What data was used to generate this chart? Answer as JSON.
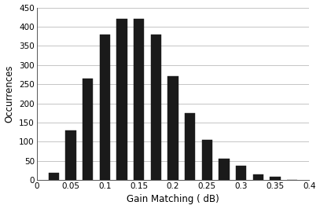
{
  "bar_centers": [
    0.025,
    0.05,
    0.075,
    0.1,
    0.125,
    0.15,
    0.175,
    0.2,
    0.225,
    0.25,
    0.275,
    0.3,
    0.325,
    0.35,
    0.375
  ],
  "bar_heights": [
    18,
    130,
    265,
    380,
    420,
    420,
    380,
    270,
    175,
    105,
    55,
    37,
    15,
    8,
    0
  ],
  "bar_width": 0.025,
  "bar_fill_ratio": 0.62,
  "bar_color": "#1a1a1a",
  "bar_edgecolor": "#1a1a1a",
  "xlim": [
    0,
    0.4
  ],
  "ylim": [
    0,
    450
  ],
  "xticks": [
    0,
    0.05,
    0.1,
    0.15,
    0.2,
    0.25,
    0.3,
    0.35,
    0.4
  ],
  "yticks": [
    0,
    50,
    100,
    150,
    200,
    250,
    300,
    350,
    400,
    450
  ],
  "xlabel": "Gain Matching ( dB)",
  "ylabel": "Occurrences",
  "background_color": "#ffffff",
  "grid_color": "#bbbbbb",
  "tick_fontsize": 7.5,
  "label_fontsize": 8.5
}
